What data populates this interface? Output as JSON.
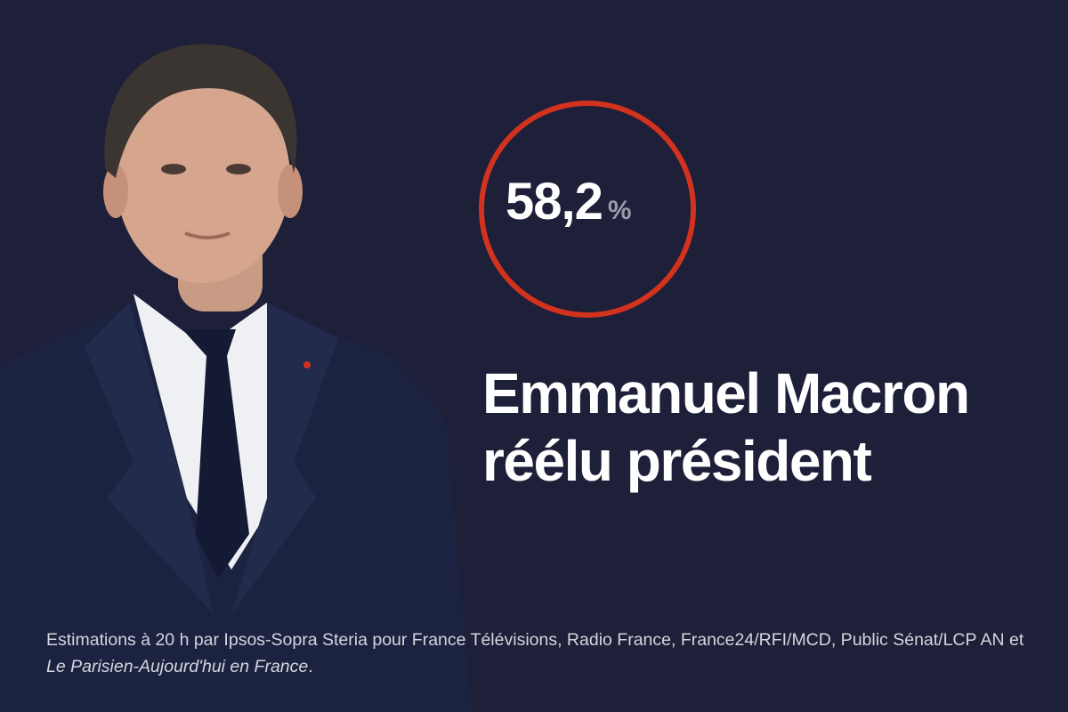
{
  "result": {
    "value": "58,2",
    "unit": "%"
  },
  "headline": {
    "line1": "Emmanuel Macron",
    "line2": "réélu président"
  },
  "footnote": {
    "text": "Estimations à 20 h par Ipsos-Sopra Steria pour France Télévisions, Radio France, France24/RFI/MCD, Public Sénat/LCP AN et ",
    "italic": "Le Parisien-Aujourd'hui en France",
    "end": "."
  }
}
